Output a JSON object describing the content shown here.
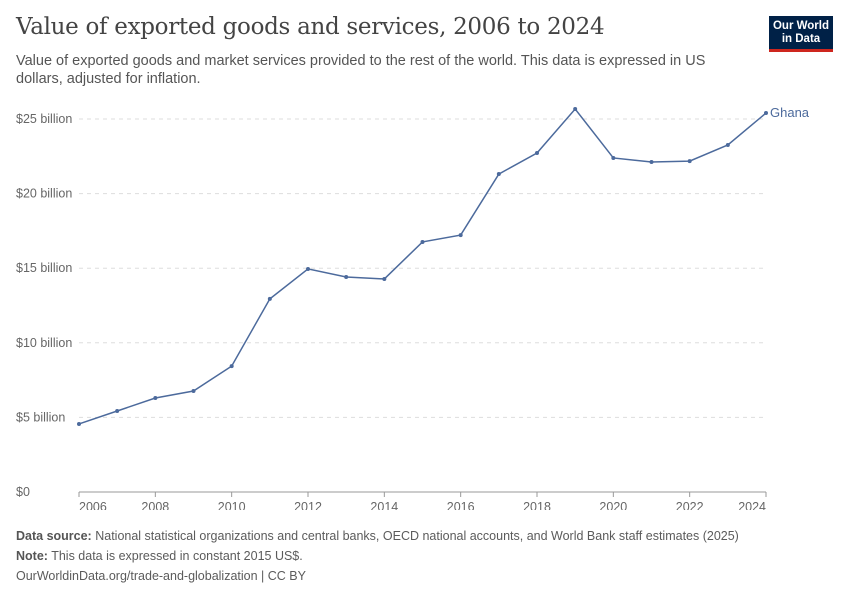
{
  "header": {
    "title": "Value of exported goods and services, 2006 to 2024",
    "subtitle": "Value of exported goods and market services provided to the rest of the world. This data is expressed in US dollars, adjusted for inflation.",
    "logo": "Our World in Data"
  },
  "footer": {
    "source_label": "Data source:",
    "source": "National statistical organizations and central banks, OECD national accounts, and World Bank staff estimates (2025)",
    "note_label": "Note:",
    "note": "This data is expressed in constant 2015 US$.",
    "url": "OurWorldinData.org/trade-and-globalization | CC BY"
  },
  "chart_data": {
    "type": "line",
    "title": "Value of exported goods and services, 2006 to 2024",
    "xlim": [
      2006,
      2024
    ],
    "ylim": [
      0,
      25000000000
    ],
    "grid": "horizontal dashed",
    "x_ticks": [
      2006,
      2008,
      2010,
      2012,
      2014,
      2016,
      2018,
      2020,
      2022,
      2024
    ],
    "y_ticks": [
      {
        "v": 0,
        "label": "$0"
      },
      {
        "v": 5000000000,
        "label": "$5 billion"
      },
      {
        "v": 10000000000,
        "label": "$10 billion"
      },
      {
        "v": 15000000000,
        "label": "$15 billion"
      },
      {
        "v": 20000000000,
        "label": "$20 billion"
      },
      {
        "v": 25000000000,
        "label": "$25 billion"
      }
    ],
    "colors": {
      "Ghana": "#4c6a9c"
    },
    "series": [
      {
        "name": "Ghana",
        "x": [
          2006,
          2007,
          2008,
          2009,
          2010,
          2011,
          2012,
          2013,
          2014,
          2015,
          2016,
          2017,
          2018,
          2019,
          2020,
          2021,
          2022,
          2023,
          2024
        ],
        "values": [
          4560000000.0,
          5430000000.0,
          6300000000.0,
          6770000000.0,
          8440000000.0,
          12940000000.0,
          14950000000.0,
          14410000000.0,
          14280000000.0,
          16760000000.0,
          17220000000.0,
          21310000000.0,
          22720000000.0,
          25670000000.0,
          22390000000.0,
          22120000000.0,
          22180000000.0,
          23260000000.0,
          25400000000.0
        ]
      }
    ]
  }
}
